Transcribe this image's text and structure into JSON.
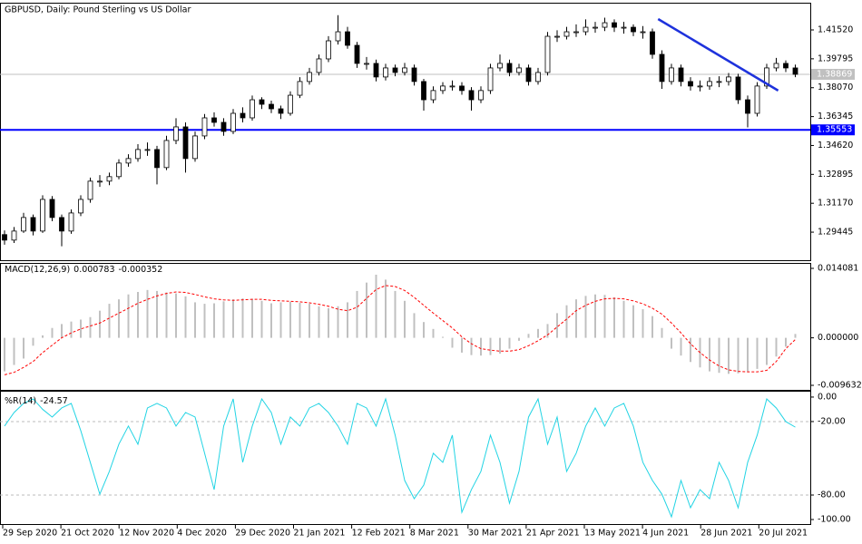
{
  "chart_data": [
    {
      "type": "candlestick",
      "title": "GBPUSD, Daily:  Pound Sterling vs US Dollar",
      "open": [
        1.293,
        1.2897,
        1.2951,
        1.3032,
        1.2951,
        1.314,
        1.3032,
        1.2951,
        1.3059,
        1.314,
        1.3249,
        1.3249,
        1.3276,
        1.3357,
        1.3384,
        1.3438,
        1.3438,
        1.333,
        1.3492,
        1.3573,
        1.3384,
        1.3519,
        1.3627,
        1.36,
        1.3546,
        1.3654,
        1.3627,
        1.3735,
        1.3708,
        1.3681,
        1.3654,
        1.3762,
        1.3844,
        1.3898,
        1.3979,
        1.4087,
        1.4141,
        1.406,
        1.3952,
        1.3952,
        1.3871,
        1.3925,
        1.3898,
        1.3925,
        1.3844,
        1.3735,
        1.379,
        1.3817,
        1.3817,
        1.379,
        1.3735,
        1.379,
        1.3925,
        1.3952,
        1.3898,
        1.3925,
        1.3844,
        1.3898,
        1.4114,
        1.4114,
        1.4141,
        1.4141,
        1.4168,
        1.4168,
        1.4195,
        1.4168,
        1.4168,
        1.4141,
        1.4141,
        1.4006,
        1.3844,
        1.3925,
        1.3844,
        1.3817,
        1.3817,
        1.3844,
        1.3844,
        1.3871,
        1.3735,
        1.3654,
        1.3817,
        1.3925,
        1.3952,
        1.3925
      ],
      "high": [
        1.2955,
        1.2975,
        1.306,
        1.305,
        1.3165,
        1.316,
        1.305,
        1.308,
        1.3165,
        1.327,
        1.3285,
        1.33,
        1.338,
        1.341,
        1.347,
        1.348,
        1.346,
        1.352,
        1.3625,
        1.36,
        1.3545,
        1.365,
        1.366,
        1.3625,
        1.368,
        1.369,
        1.376,
        1.375,
        1.373,
        1.37,
        1.3785,
        1.387,
        1.3925,
        1.4005,
        1.4115,
        1.424,
        1.417,
        1.408,
        1.399,
        1.3975,
        1.395,
        1.3945,
        1.3955,
        1.3945,
        1.386,
        1.3815,
        1.384,
        1.385,
        1.384,
        1.381,
        1.3815,
        1.395,
        1.4005,
        1.3975,
        1.395,
        1.3945,
        1.3925,
        1.414,
        1.415,
        1.417,
        1.4185,
        1.4215,
        1.42,
        1.4225,
        1.4215,
        1.42,
        1.4185,
        1.4175,
        1.416,
        1.403,
        1.395,
        1.3945,
        1.387,
        1.385,
        1.387,
        1.3875,
        1.3895,
        1.389,
        1.376,
        1.384,
        1.395,
        1.3985,
        1.397,
        1.3945
      ],
      "low": [
        1.287,
        1.288,
        1.294,
        1.2925,
        1.294,
        1.301,
        1.286,
        1.2935,
        1.304,
        1.312,
        1.3215,
        1.3225,
        1.326,
        1.3335,
        1.3365,
        1.34,
        1.323,
        1.3315,
        1.347,
        1.33,
        1.3365,
        1.35,
        1.3575,
        1.352,
        1.353,
        1.36,
        1.361,
        1.368,
        1.3655,
        1.362,
        1.364,
        1.3745,
        1.3825,
        1.388,
        1.396,
        1.4065,
        1.404,
        1.3925,
        1.3915,
        1.3845,
        1.385,
        1.3875,
        1.388,
        1.382,
        1.367,
        1.3715,
        1.377,
        1.379,
        1.3765,
        1.367,
        1.3715,
        1.377,
        1.3905,
        1.3875,
        1.388,
        1.382,
        1.3825,
        1.388,
        1.408,
        1.4095,
        1.411,
        1.412,
        1.4135,
        1.4145,
        1.414,
        1.413,
        1.4115,
        1.41,
        1.398,
        1.38,
        1.3825,
        1.3815,
        1.379,
        1.3785,
        1.3795,
        1.381,
        1.382,
        1.371,
        1.357,
        1.3635,
        1.38,
        1.3905,
        1.39,
        1.387
      ],
      "close": [
        1.2897,
        1.2951,
        1.3032,
        1.2951,
        1.314,
        1.3032,
        1.2951,
        1.3059,
        1.314,
        1.3249,
        1.3249,
        1.3276,
        1.3357,
        1.3384,
        1.3438,
        1.3438,
        1.333,
        1.3492,
        1.3573,
        1.3384,
        1.3519,
        1.3627,
        1.36,
        1.3546,
        1.3654,
        1.3627,
        1.3735,
        1.3708,
        1.3681,
        1.3654,
        1.3762,
        1.3844,
        1.3898,
        1.3979,
        1.4087,
        1.4141,
        1.406,
        1.3952,
        1.3952,
        1.3871,
        1.3925,
        1.3898,
        1.3925,
        1.3844,
        1.3735,
        1.379,
        1.3817,
        1.3817,
        1.379,
        1.3735,
        1.379,
        1.3925,
        1.3952,
        1.3898,
        1.3925,
        1.3844,
        1.3898,
        1.4114,
        1.4114,
        1.4141,
        1.4141,
        1.4168,
        1.4168,
        1.4195,
        1.4168,
        1.4168,
        1.4141,
        1.4141,
        1.4006,
        1.3844,
        1.3925,
        1.3844,
        1.3817,
        1.3817,
        1.3844,
        1.3844,
        1.3871,
        1.3735,
        1.3654,
        1.3817,
        1.3925,
        1.3952,
        1.3925,
        1.38869
      ],
      "up_color": "#ffffff",
      "down_color": "#000000",
      "price_line_color": "#c0c0c0",
      "hline": {
        "value": 1.35553,
        "color": "#0000ff"
      },
      "trendline": {
        "values": [
          1.4217,
          1.379
        ],
        "color": "#1e32dc"
      },
      "ylim": [
        1.2777,
        1.4309
      ],
      "yticks": [
        {
          "value": 1.4152,
          "label": "1.41520"
        },
        1.39795,
        {
          "value": 1.3807,
          "label": "1.38070"
        },
        1.36345,
        {
          "value": 1.3462,
          "label": "1.34620"
        },
        1.32895,
        {
          "value": 1.3117,
          "label": "1.31170"
        },
        1.29445
      ]
    },
    {
      "type": "macd",
      "title": "MACD(12,26,9)",
      "series": [
        {
          "style": "histogram",
          "color": "#c0c0c0",
          "values": [
            -0.0068,
            -0.0055,
            -0.0042,
            -0.0016,
            0.0005,
            0.002,
            0.0028,
            0.0033,
            0.0037,
            0.0042,
            0.0055,
            0.0069,
            0.0078,
            0.0088,
            0.0093,
            0.0097,
            0.0095,
            0.0092,
            0.009,
            0.0084,
            0.0072,
            0.0069,
            0.007,
            0.0074,
            0.0078,
            0.008,
            0.0079,
            0.0075,
            0.007,
            0.0072,
            0.0073,
            0.0071,
            0.0069,
            0.0064,
            0.006,
            0.0064,
            0.0072,
            0.0095,
            0.0112,
            0.0128,
            0.0118,
            0.0095,
            0.0075,
            0.005,
            0.0032,
            0.0018,
            0.0002,
            -0.002,
            -0.003,
            -0.0035,
            -0.0036,
            -0.0035,
            -0.0032,
            -0.0022,
            -0.0006,
            0.0008,
            0.0018,
            0.0028,
            0.005,
            0.0066,
            0.0078,
            0.0085,
            0.0088,
            0.0087,
            0.0082,
            0.0075,
            0.0066,
            0.0058,
            0.0044,
            0.002,
            -0.0022,
            -0.0036,
            -0.0049,
            -0.006,
            -0.0068,
            -0.0071,
            -0.0073,
            -0.0072,
            -0.0068,
            -0.0063,
            -0.0055,
            -0.0038,
            -0.0018,
            0.000783
          ]
        },
        {
          "style": "dashed",
          "color": "#ff0000",
          "values": [
            -0.0075,
            -0.007,
            -0.006,
            -0.0048,
            -0.003,
            -0.0015,
            0.0,
            0.001,
            0.0018,
            0.0024,
            0.003,
            0.004,
            0.005,
            0.006,
            0.007,
            0.0078,
            0.0085,
            0.009,
            0.0093,
            0.0092,
            0.0088,
            0.0083,
            0.0079,
            0.0077,
            0.0076,
            0.0077,
            0.0078,
            0.0078,
            0.0076,
            0.0075,
            0.0074,
            0.0073,
            0.0071,
            0.0068,
            0.0064,
            0.0058,
            0.0055,
            0.0062,
            0.008,
            0.0098,
            0.0106,
            0.0104,
            0.0096,
            0.0082,
            0.0066,
            0.005,
            0.0035,
            0.002,
            0.0002,
            -0.0012,
            -0.0022,
            -0.0025,
            -0.0027,
            -0.0027,
            -0.0024,
            -0.0016,
            -0.0006,
            0.0006,
            0.0022,
            0.0038,
            0.0055,
            0.0066,
            0.0074,
            0.0079,
            0.008,
            0.0079,
            0.0075,
            0.0069,
            0.006,
            0.0048,
            0.003,
            0.001,
            -0.0012,
            -0.003,
            -0.0045,
            -0.0057,
            -0.0065,
            -0.0068,
            -0.0069,
            -0.0069,
            -0.0066,
            -0.0048,
            -0.0022,
            -0.000352
          ]
        }
      ],
      "ylim": [
        -0.01055,
        0.015
      ],
      "yticks": [
        0.014081,
        {
          "value": 0,
          "label": "0.000000"
        },
        -0.009632
      ]
    },
    {
      "type": "line",
      "title": "%R(14)",
      "color": "#22d4e4",
      "values": [
        -23.7,
        -12.6,
        -5.2,
        -1.5,
        -10.0,
        -16.3,
        -8.9,
        -5.2,
        -27.4,
        -53.3,
        -79.3,
        -60.7,
        -38.5,
        -23.7,
        -38.5,
        -8.9,
        -5.2,
        -8.9,
        -23.7,
        -12.6,
        -16.3,
        -45.9,
        -75.6,
        -23.7,
        -1.5,
        -53.3,
        -23.7,
        -1.5,
        -12.6,
        -38.5,
        -16.3,
        -23.7,
        -8.9,
        -5.2,
        -12.6,
        -23.7,
        -38.5,
        -5.2,
        -8.9,
        -23.7,
        -1.5,
        -31.1,
        -68.1,
        -83.0,
        -71.9,
        -45.9,
        -53.3,
        -31.1,
        -94.1,
        -75.6,
        -60.7,
        -31.1,
        -53.3,
        -86.7,
        -60.7,
        -16.3,
        -1.5,
        -38.5,
        -16.3,
        -60.7,
        -45.9,
        -23.7,
        -8.9,
        -23.7,
        -8.9,
        -5.2,
        -23.7,
        -53.3,
        -68.1,
        -79.3,
        -97.8,
        -68.1,
        -90.4,
        -75.6,
        -83.0,
        -53.3,
        -68.1,
        -90.4,
        -53.3,
        -31.1,
        -1.5,
        -8.9,
        -20.0,
        -24.57
      ],
      "levels": [
        -20,
        -80
      ],
      "ylim": [
        -103.7,
        4.4
      ],
      "yticks": [
        {
          "value": 0,
          "label": "0.00"
        },
        {
          "value": -20,
          "label": "-20.00"
        },
        {
          "value": -80,
          "label": "-80.00"
        },
        {
          "value": -100,
          "label": "-100.00"
        }
      ],
      "xticks": [
        "29 Sep 2020",
        "21 Oct 2020",
        "12 Nov 2020",
        "4 Dec 2020",
        "29 Dec 2020",
        "21 Jan 2021",
        "12 Feb 2021",
        "8 Mar 2021",
        "30 Mar 2021",
        "21 Apr 2021",
        "13 May 2021",
        "4 Jun 2021",
        "28 Jun 2021",
        "20 Jul 2021"
      ]
    }
  ]
}
